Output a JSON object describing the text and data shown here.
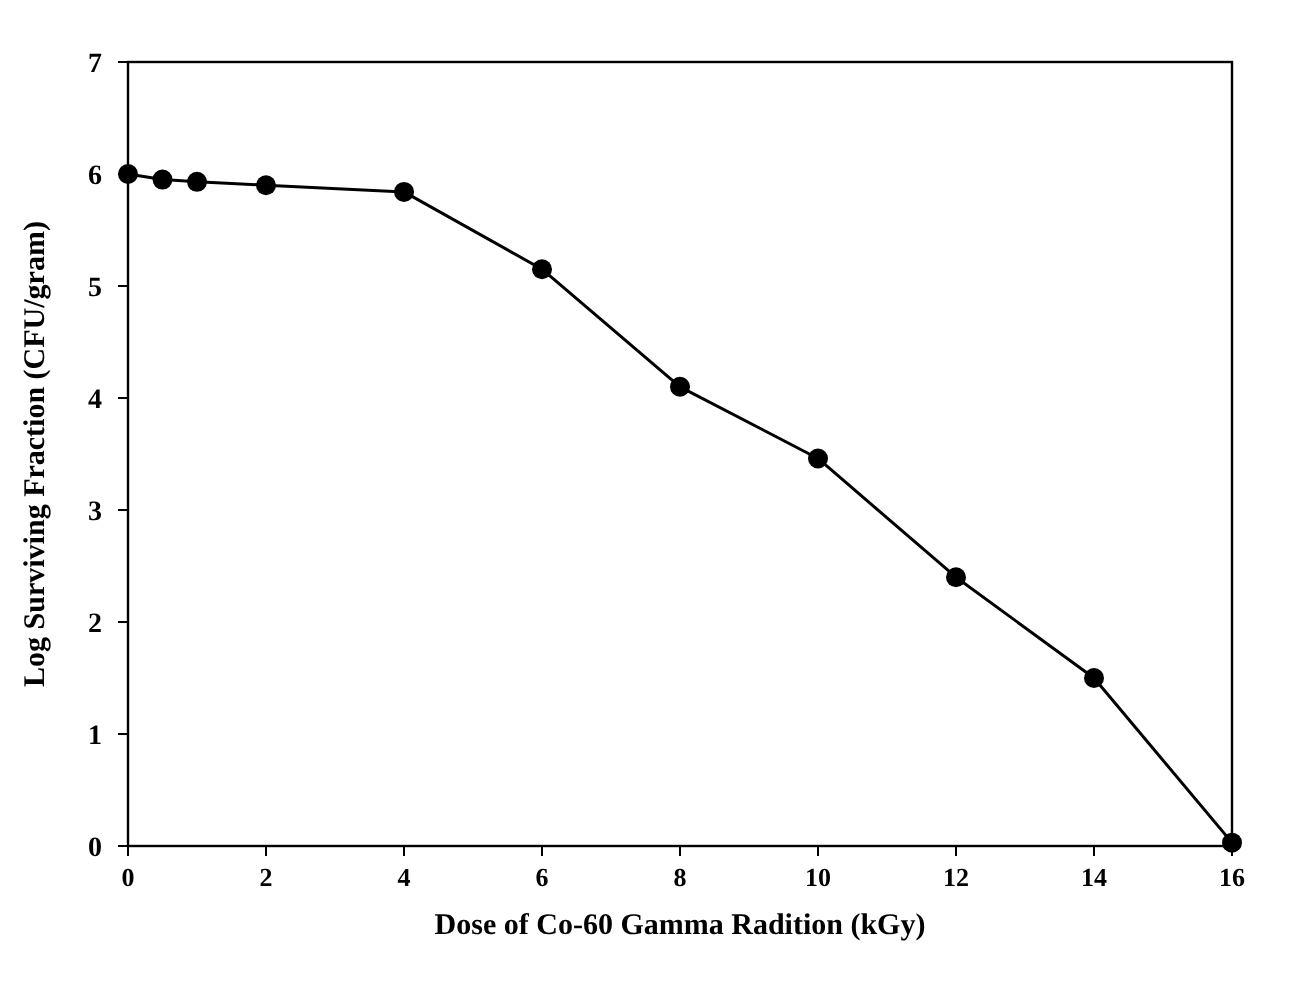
{
  "chart_data": {
    "type": "line",
    "xlabel": "Dose of Co-60 Gamma Radition (kGy)",
    "ylabel": "Log Surviving Fraction (CFU/gram)",
    "x": [
      0,
      0.5,
      1,
      2,
      4,
      6,
      8,
      10,
      12,
      14,
      16
    ],
    "series": [
      {
        "color": "#000000",
        "values": [
          6.0,
          5.95,
          5.93,
          5.9,
          5.84,
          5.15,
          4.1,
          3.46,
          2.4,
          1.5,
          0.03
        ]
      }
    ],
    "xlim": [
      0,
      16
    ],
    "xticks": [
      0,
      2,
      4,
      6,
      8,
      10,
      12,
      14,
      16
    ],
    "ylim": [
      0,
      7
    ],
    "yticks": [
      0,
      1,
      2,
      3,
      4,
      5,
      6,
      7
    ],
    "grid": false,
    "marker": "circle",
    "line_style": "solid"
  }
}
